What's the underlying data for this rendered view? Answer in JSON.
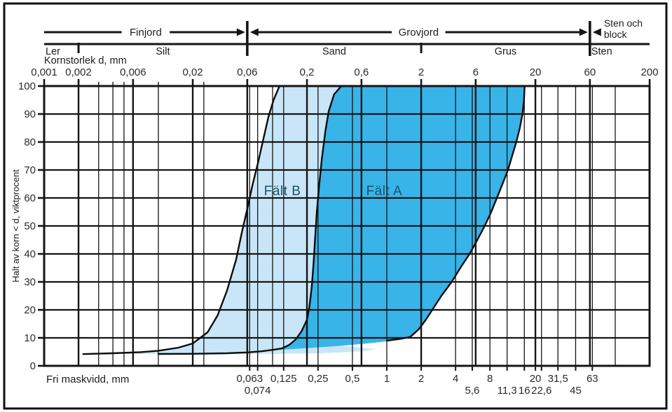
{
  "figure": {
    "kind": "grain-size-distribution-diagram",
    "background": "#ffffff",
    "frame_color": "#111111"
  },
  "chart_data": {
    "type": "area",
    "x_axis": {
      "scale": "log",
      "min": 0.001,
      "max": 200,
      "label": "Kornstorlek d, mm",
      "top_ticks": [
        {
          "v": 0.001,
          "label": "0,001"
        },
        {
          "v": 0.002,
          "label": "0,002"
        },
        {
          "v": 0.006,
          "label": "0,006"
        },
        {
          "v": 0.02,
          "label": "0,02"
        },
        {
          "v": 0.06,
          "label": "0,06"
        },
        {
          "v": 0.2,
          "label": "0,2"
        },
        {
          "v": 0.6,
          "label": "0,6"
        },
        {
          "v": 2,
          "label": "2"
        },
        {
          "v": 6,
          "label": "6"
        },
        {
          "v": 20,
          "label": "20"
        },
        {
          "v": 60,
          "label": "60"
        },
        {
          "v": 200,
          "label": "200"
        }
      ],
      "minor_scale_ticks": [
        0.003,
        0.004,
        0.005,
        0.01,
        0.025
      ]
    },
    "y_axis": {
      "min": 0,
      "max": 100,
      "step": 10,
      "label": "Halt av korn < d, viktprocent",
      "tick_labels": [
        "0",
        "10",
        "20",
        "30",
        "40",
        "50",
        "60",
        "70",
        "80",
        "90",
        "100"
      ]
    },
    "bottom_axis": {
      "label": "Fri maskvidd, mm",
      "row1": [
        {
          "v": 0.063,
          "label": "0,063"
        },
        {
          "v": 0.125,
          "label": "0,125"
        },
        {
          "v": 0.25,
          "label": "0,25"
        },
        {
          "v": 0.5,
          "label": "0,5"
        },
        {
          "v": 1,
          "label": "1"
        },
        {
          "v": 2,
          "label": "2"
        },
        {
          "v": 4,
          "label": "4"
        },
        {
          "v": 8,
          "label": "8"
        },
        {
          "v": 20,
          "label": "20"
        },
        {
          "v": 31.5,
          "label": "31,5"
        },
        {
          "v": 63,
          "label": "63"
        }
      ],
      "row2": [
        {
          "v": 0.074,
          "label": "0,074"
        },
        {
          "v": 5.6,
          "label": "5,6"
        },
        {
          "v": 11.3,
          "label": "11,3"
        },
        {
          "v": 16,
          "label": "16"
        },
        {
          "v": 22.6,
          "label": "22,6"
        },
        {
          "v": 45,
          "label": "45"
        }
      ]
    },
    "gridlines": {
      "vertical_major": [
        0.002,
        0.006,
        0.02,
        0.06,
        0.2,
        0.6,
        2,
        6,
        20,
        60
      ],
      "vertical_minor": [
        0.003,
        0.004,
        0.005,
        0.01,
        0.025,
        0.063,
        0.074,
        0.1,
        0.125,
        0.25,
        0.5,
        1,
        4,
        5.6,
        8,
        11.3,
        16,
        22.6,
        31.5,
        45,
        63,
        100
      ],
      "horizontal": [
        10,
        20,
        30,
        40,
        50,
        60,
        70,
        80,
        90
      ]
    },
    "soil_groups": [
      {
        "label": "Finjord",
        "from": 0.001,
        "to": 0.06,
        "arrow": "right"
      },
      {
        "label": "Grovjord",
        "from": 0.06,
        "to": 60,
        "arrow": "both"
      },
      {
        "label": "Sten och block",
        "label_line2": "block",
        "label_line1": "Sten och",
        "from": 60,
        "to": 200,
        "arrow": "left"
      }
    ],
    "group_dividers": [
      0.06,
      60
    ],
    "soil_classes": [
      {
        "label": "Ler",
        "from": 0.001,
        "to": 0.002,
        "align": "left"
      },
      {
        "label": "Silt",
        "from": 0.002,
        "to": 0.06,
        "align": "center"
      },
      {
        "label": "Sand",
        "from": 0.06,
        "to": 2,
        "align": "center"
      },
      {
        "label": "Grus",
        "from": 2,
        "to": 60,
        "align": "center"
      },
      {
        "label": "Sten",
        "from": 60,
        "to": 200,
        "align": "left"
      }
    ],
    "class_dividers": [
      0.002,
      2
    ],
    "regions": [
      {
        "id": "falt-b",
        "label": "Fält B",
        "fill_color": "#c8e6f7",
        "label_color": "#1d5168",
        "label_at": {
          "v": 0.122,
          "pct": 62.5
        },
        "fill": [
          [
            0.0022,
            4.2
          ],
          [
            0.004,
            4.5
          ],
          [
            0.007,
            4.9
          ],
          [
            0.01,
            5.4
          ],
          [
            0.015,
            6.5
          ],
          [
            0.02,
            8
          ],
          [
            0.027,
            12
          ],
          [
            0.033,
            18
          ],
          [
            0.04,
            27
          ],
          [
            0.048,
            38
          ],
          [
            0.054,
            48
          ],
          [
            0.06,
            56
          ],
          [
            0.067,
            65
          ],
          [
            0.075,
            73
          ],
          [
            0.083,
            81
          ],
          [
            0.092,
            89
          ],
          [
            0.102,
            95
          ],
          [
            0.115,
            100
          ],
          [
            0.4,
            100
          ],
          [
            0.345,
            97
          ],
          [
            0.31,
            91
          ],
          [
            0.29,
            84
          ],
          [
            0.27,
            74
          ],
          [
            0.255,
            64
          ],
          [
            0.244,
            55
          ],
          [
            0.236,
            46
          ],
          [
            0.228,
            36
          ],
          [
            0.22,
            28
          ],
          [
            0.21,
            21
          ],
          [
            0.2,
            16.5
          ],
          [
            0.18,
            12.5
          ],
          [
            0.16,
            9.5
          ],
          [
            0.22,
            8.2
          ],
          [
            0.35,
            7.4
          ],
          [
            0.5,
            6.8
          ],
          [
            0.65,
            6.3
          ],
          [
            0.8,
            5.9
          ],
          [
            0.6,
            5.2
          ],
          [
            0.4,
            4.8
          ],
          [
            0.25,
            4.5
          ],
          [
            0.12,
            4.3
          ],
          [
            0.04,
            4.25
          ],
          [
            0.01,
            4.25
          ]
        ]
      },
      {
        "id": "falt-a",
        "label": "Fält A",
        "fill_color": "#38b4e9",
        "label_color": "#1d5168",
        "label_at": {
          "v": 0.95,
          "pct": 62.5
        },
        "fill": [
          [
            0.095,
            5.6
          ],
          [
            0.15,
            6
          ],
          [
            0.3,
            6.8
          ],
          [
            0.5,
            7.5
          ],
          [
            0.8,
            8.3
          ],
          [
            1.2,
            9.2
          ],
          [
            1.6,
            10.3
          ],
          [
            1.9,
            13
          ],
          [
            2.2,
            16.5
          ],
          [
            2.5,
            20
          ],
          [
            3.0,
            25
          ],
          [
            3.7,
            30
          ],
          [
            4.4,
            35
          ],
          [
            5.3,
            40
          ],
          [
            6.2,
            45
          ],
          [
            7.2,
            50
          ],
          [
            8.2,
            55
          ],
          [
            9.2,
            60
          ],
          [
            10.3,
            65
          ],
          [
            11.5,
            70
          ],
          [
            12.5,
            75
          ],
          [
            13.6,
            80
          ],
          [
            14.6,
            85
          ],
          [
            15.4,
            90
          ],
          [
            15.9,
            95
          ],
          [
            16.1,
            100
          ],
          [
            0.4,
            100
          ],
          [
            0.345,
            97
          ],
          [
            0.31,
            91
          ],
          [
            0.29,
            84
          ],
          [
            0.27,
            74
          ],
          [
            0.255,
            64
          ],
          [
            0.244,
            55
          ],
          [
            0.236,
            46
          ],
          [
            0.228,
            36
          ],
          [
            0.22,
            28
          ],
          [
            0.21,
            21
          ],
          [
            0.2,
            16.5
          ],
          [
            0.18,
            12.5
          ],
          [
            0.16,
            9.5
          ],
          [
            0.14,
            7.5
          ],
          [
            0.12,
            6.2
          ]
        ]
      }
    ],
    "curves": [
      {
        "id": "b-left-boundary",
        "points": [
          [
            0.0022,
            4.2
          ],
          [
            0.004,
            4.5
          ],
          [
            0.007,
            4.9
          ],
          [
            0.01,
            5.4
          ],
          [
            0.015,
            6.5
          ],
          [
            0.02,
            8
          ],
          [
            0.027,
            12
          ],
          [
            0.033,
            18
          ],
          [
            0.04,
            27
          ],
          [
            0.048,
            38
          ],
          [
            0.054,
            48
          ],
          [
            0.06,
            56
          ],
          [
            0.067,
            65
          ],
          [
            0.075,
            73
          ],
          [
            0.083,
            81
          ],
          [
            0.092,
            89
          ],
          [
            0.102,
            95
          ],
          [
            0.115,
            100
          ]
        ]
      },
      {
        "id": "b-right-a-left-boundary",
        "points": [
          [
            0.01,
            4.25
          ],
          [
            0.02,
            4.3
          ],
          [
            0.04,
            4.5
          ],
          [
            0.06,
            4.8
          ],
          [
            0.08,
            5.2
          ],
          [
            0.1,
            5.7
          ],
          [
            0.12,
            6.2
          ],
          [
            0.14,
            7.5
          ],
          [
            0.16,
            9.5
          ],
          [
            0.18,
            12.5
          ],
          [
            0.2,
            16.5
          ],
          [
            0.21,
            21
          ],
          [
            0.22,
            28
          ],
          [
            0.228,
            36
          ],
          [
            0.236,
            46
          ],
          [
            0.244,
            55
          ],
          [
            0.255,
            64
          ],
          [
            0.27,
            74
          ],
          [
            0.29,
            84
          ],
          [
            0.31,
            91
          ],
          [
            0.345,
            97
          ],
          [
            0.4,
            100
          ]
        ]
      },
      {
        "id": "a-right-boundary",
        "points": [
          [
            1.0,
            9
          ],
          [
            1.3,
            9.6
          ],
          [
            1.6,
            10.3
          ],
          [
            1.9,
            13
          ],
          [
            2.2,
            16.5
          ],
          [
            2.5,
            20
          ],
          [
            3.0,
            25
          ],
          [
            3.7,
            30
          ],
          [
            4.4,
            35
          ],
          [
            5.3,
            40
          ],
          [
            6.2,
            45
          ],
          [
            7.2,
            50
          ],
          [
            8.2,
            55
          ],
          [
            9.2,
            60
          ],
          [
            10.3,
            65
          ],
          [
            11.5,
            70
          ],
          [
            12.5,
            75
          ],
          [
            13.6,
            80
          ],
          [
            14.6,
            85
          ],
          [
            15.4,
            90
          ],
          [
            15.9,
            95
          ],
          [
            16.1,
            100
          ]
        ]
      }
    ],
    "style": {
      "grid_color": "#151515",
      "curve_color": "#0d0d0d",
      "text_color": "#1c1c1c",
      "tick_label_color": "#2a2a2a"
    }
  }
}
